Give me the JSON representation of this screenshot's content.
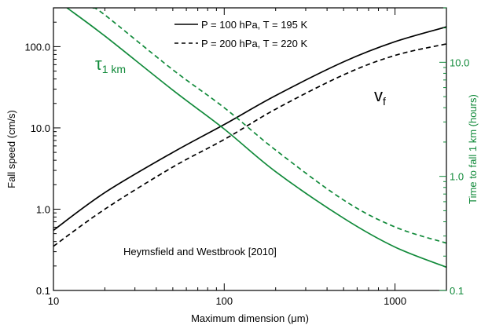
{
  "chart_data": {
    "type": "line",
    "x_scale": "log",
    "y_scale": "log",
    "y2_scale": "log",
    "xlim": [
      10,
      2000
    ],
    "ylim": [
      0.1,
      300
    ],
    "y2lim": [
      0.1,
      30
    ],
    "xlabel_main": "Maximum dimension (",
    "xlabel_unit": "μm",
    "xlabel_close": ")",
    "ylabel": "Fall speed (cm/s)",
    "y2label": "Time to fall 1 km (hours)",
    "x_ticks": [
      "10",
      "100",
      "1000"
    ],
    "y_ticks": [
      "0.1",
      "1.0",
      "10.0",
      "100.0"
    ],
    "y2_ticks": [
      "0.1",
      "1.0",
      "10.0"
    ],
    "annotation": "Heymsfield and Westbrook [2010]",
    "label_vf_main": "v",
    "label_vf_sub": "f",
    "label_tau_main": "τ",
    "label_tau_sub": "1 km",
    "legend": [
      {
        "label": "P = 100 hPa, T = 195 K",
        "dash": "solid"
      },
      {
        "label": "P = 200 hPa, T = 220 K",
        "dash": "dashed"
      }
    ],
    "colors": {
      "vf": "#000000",
      "tau": "#118a3a"
    },
    "series": [
      {
        "quantity": "fall speed",
        "condition": "P = 100 hPa, T = 195 K",
        "axis": "left",
        "dash": "solid",
        "x": [
          10,
          20,
          50,
          100,
          200,
          500,
          1000,
          2000
        ],
        "y": [
          0.55,
          1.6,
          5.0,
          11,
          25,
          65,
          115,
          175
        ]
      },
      {
        "quantity": "fall speed",
        "condition": "P = 200 hPa, T = 220 K",
        "axis": "left",
        "dash": "dashed",
        "x": [
          10,
          20,
          50,
          100,
          200,
          500,
          1000,
          2000
        ],
        "y": [
          0.35,
          1.0,
          3.3,
          7.2,
          17,
          45,
          78,
          108
        ]
      },
      {
        "quantity": "time to fall 1 km",
        "condition": "P = 100 hPa, T = 195 K",
        "axis": "right",
        "dash": "solid",
        "x": [
          12,
          20,
          50,
          100,
          200,
          500,
          1000,
          2000
        ],
        "y": [
          30,
          17,
          5.7,
          2.6,
          1.1,
          0.43,
          0.24,
          0.16
        ]
      },
      {
        "quantity": "time to fall 1 km",
        "condition": "P = 200 hPa, T = 220 K",
        "axis": "right",
        "dash": "dashed",
        "x": [
          17,
          20,
          50,
          100,
          200,
          500,
          1000,
          2000
        ],
        "y": [
          30,
          26,
          8.6,
          4.0,
          1.7,
          0.62,
          0.36,
          0.26
        ]
      }
    ]
  }
}
